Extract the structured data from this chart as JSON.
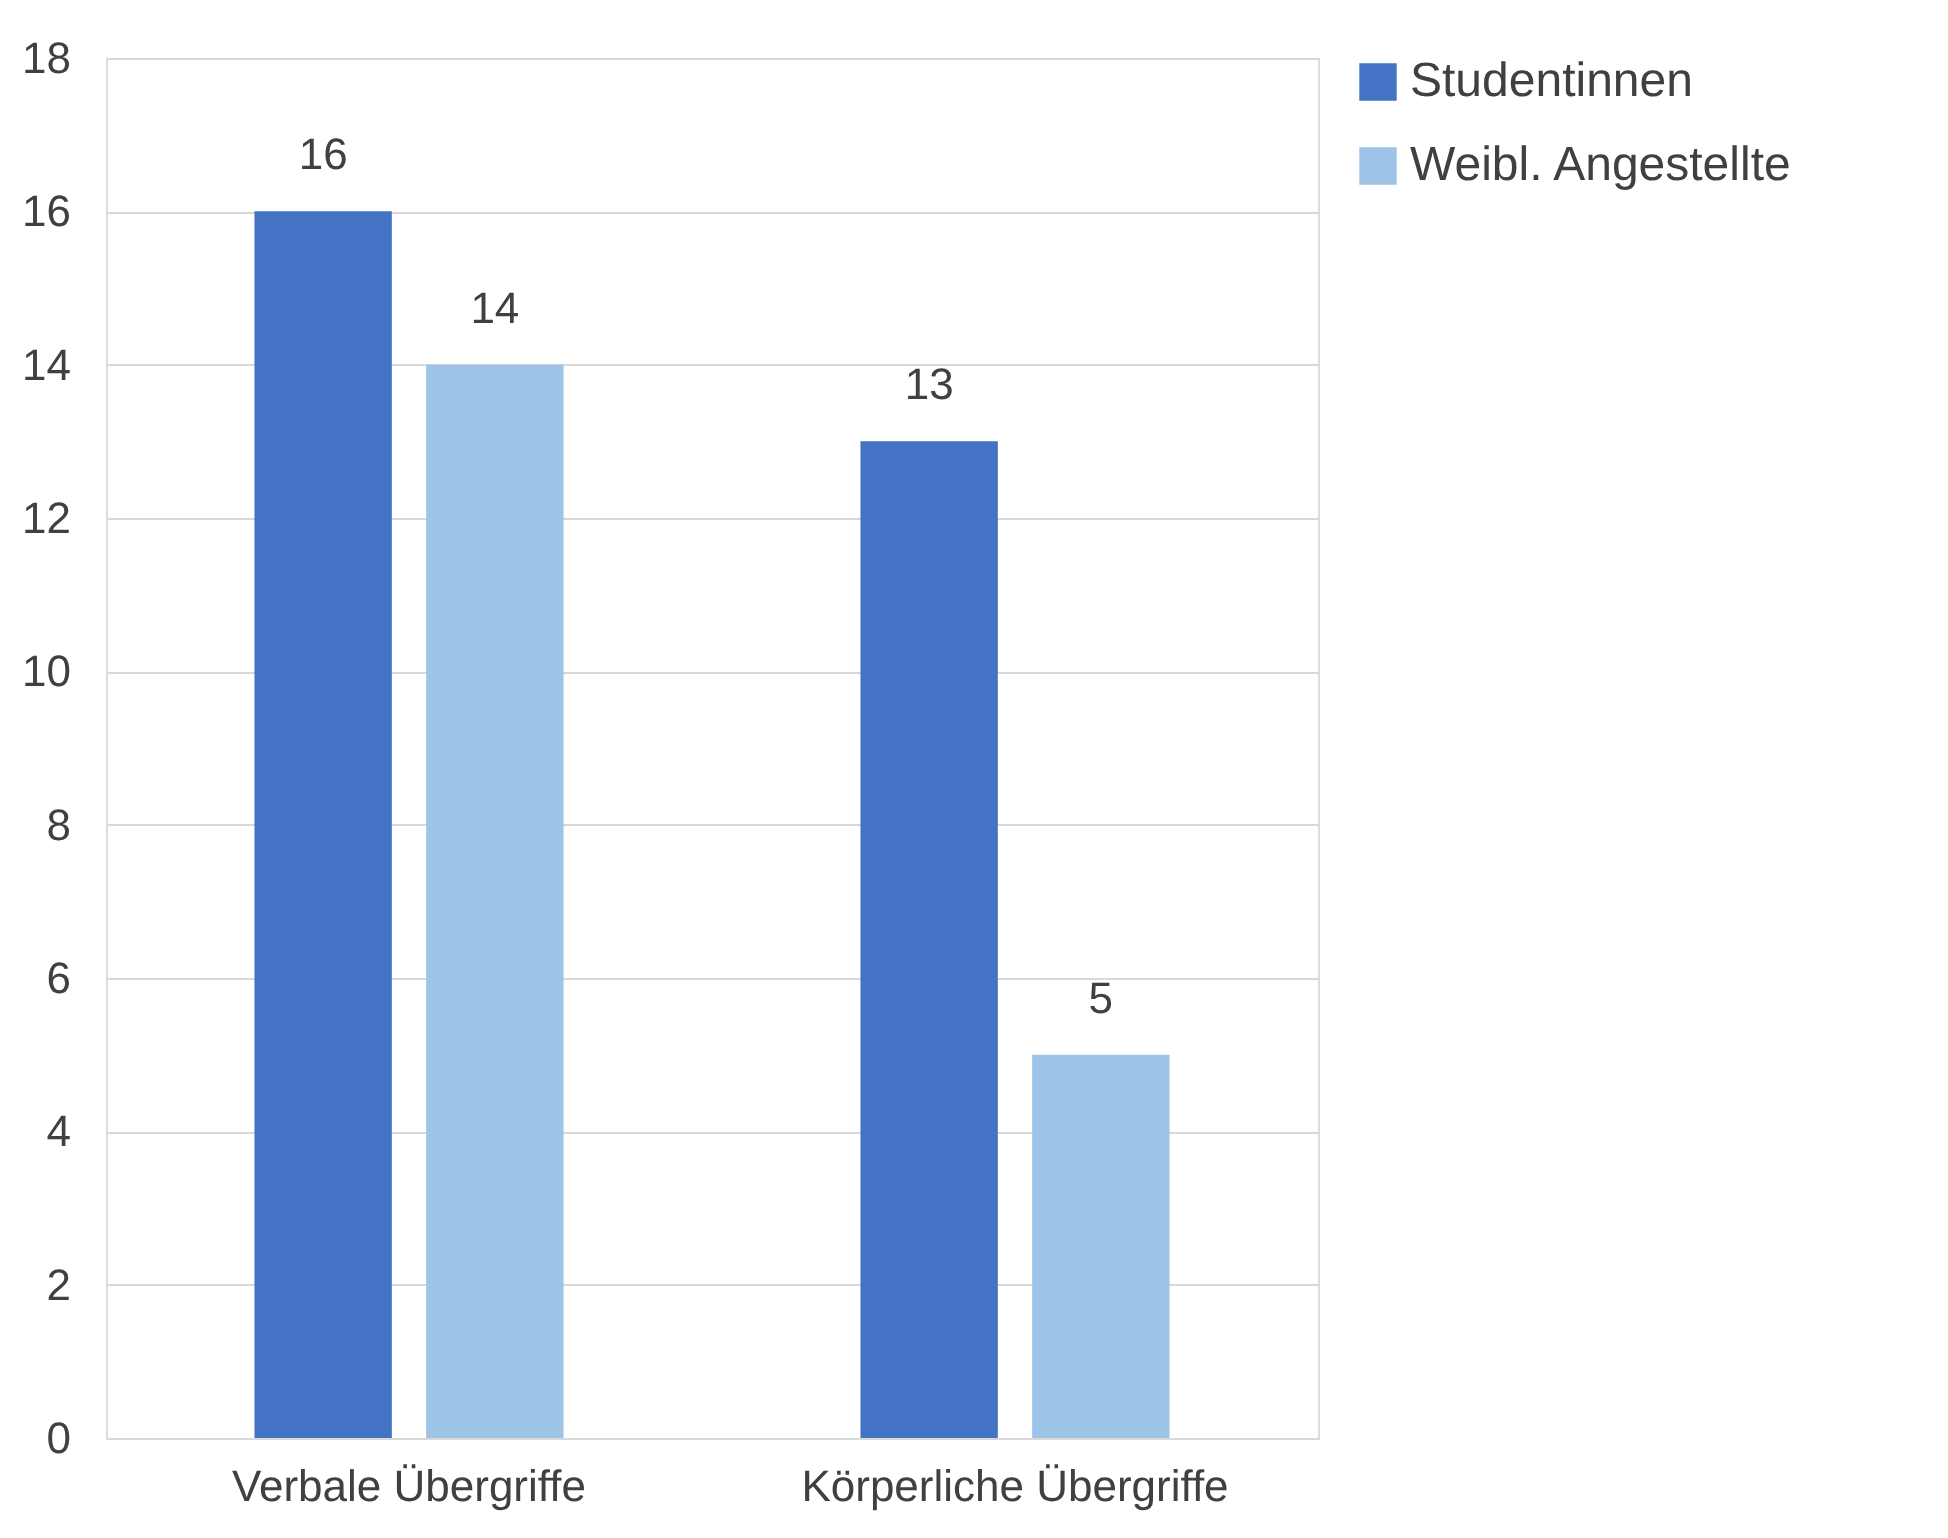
{
  "chart_data": {
    "type": "bar",
    "categories": [
      "Verbale Übergriffe",
      "Körperliche Übergriffe"
    ],
    "series": [
      {
        "name": "Studentinnen",
        "color": "#4472c4",
        "values": [
          16,
          13
        ]
      },
      {
        "name": "Weibl. Angestellte",
        "color": "#9dc3e6",
        "values": [
          14,
          5
        ]
      }
    ],
    "ylim": [
      0,
      18
    ],
    "yticks": [
      0,
      2,
      4,
      6,
      8,
      10,
      12,
      14,
      16,
      18
    ],
    "grid": "y",
    "legend": "right",
    "data_labels": true
  }
}
